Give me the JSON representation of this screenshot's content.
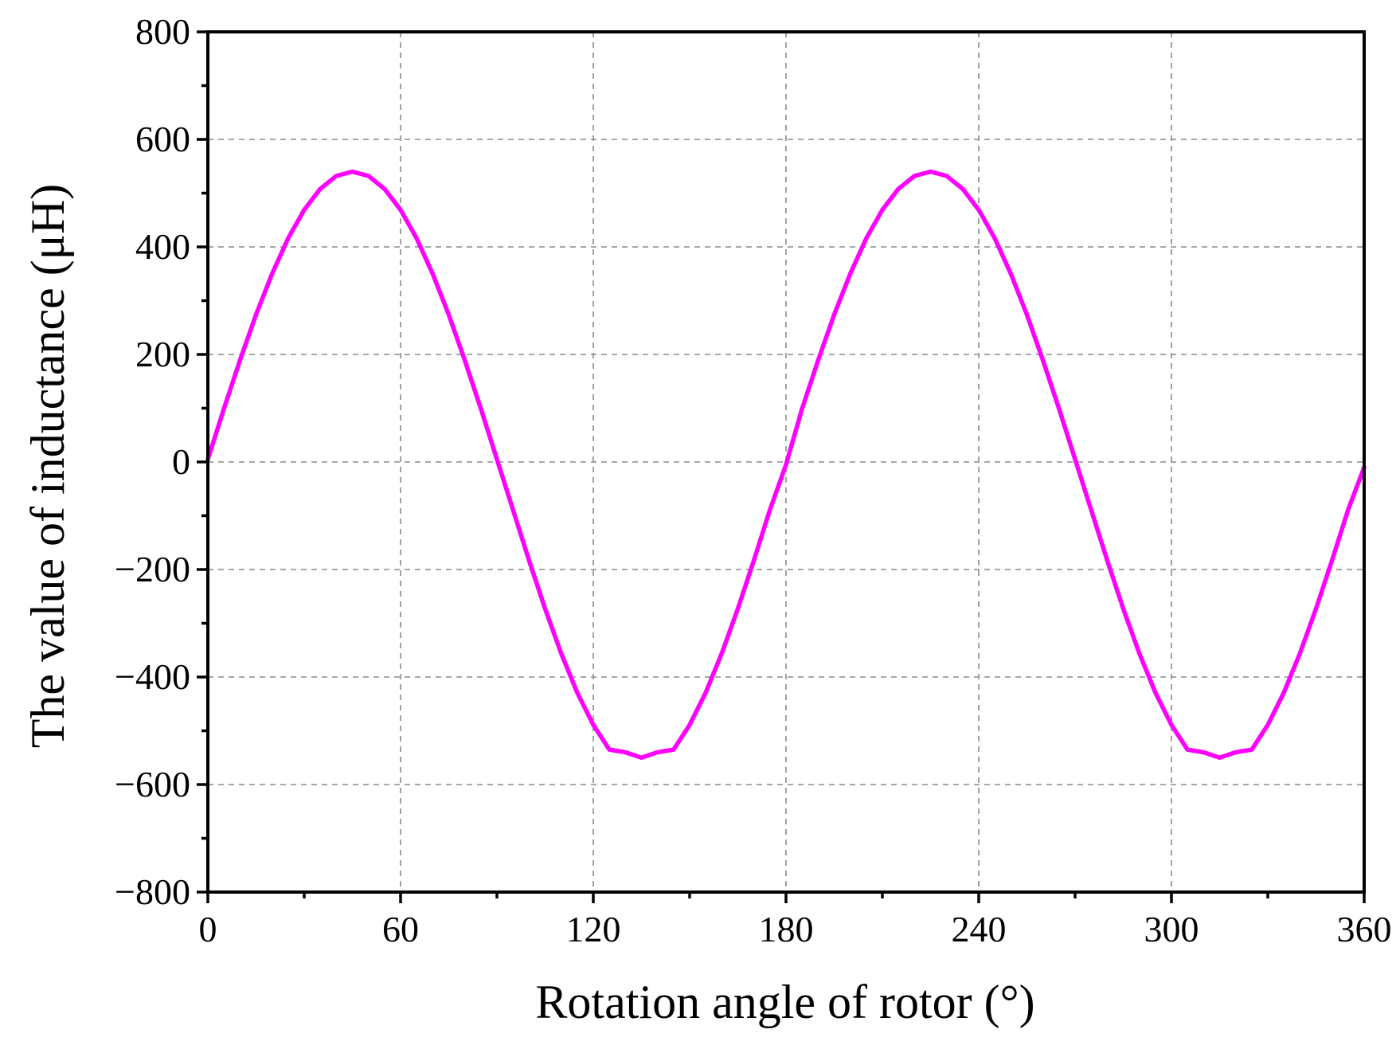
{
  "chart_data": {
    "type": "line",
    "title": "",
    "xlabel": "Rotation angle of rotor (°)",
    "ylabel": "The value of inductance (μH)",
    "xlim": [
      0,
      360
    ],
    "ylim": [
      -800,
      800
    ],
    "x_ticks": [
      0,
      60,
      120,
      180,
      240,
      300,
      360
    ],
    "x_tick_labels": [
      "0",
      "60",
      "120",
      "180",
      "240",
      "300",
      "360"
    ],
    "y_ticks": [
      800,
      600,
      400,
      200,
      0,
      -200,
      -400,
      -600,
      -800
    ],
    "y_tick_labels": [
      "800",
      "600",
      "400",
      "200",
      "0",
      "−200",
      "−400",
      "−600",
      "−800"
    ],
    "grid": true,
    "series": [
      {
        "color": "#ff00ff",
        "x": [
          0,
          5,
          10,
          15,
          20,
          25,
          30,
          35,
          40,
          45,
          50,
          55,
          60,
          65,
          70,
          75,
          80,
          85,
          90,
          95,
          100,
          105,
          110,
          115,
          120,
          125,
          130,
          135,
          140,
          145,
          150,
          155,
          160,
          165,
          170,
          175,
          180,
          185,
          190,
          195,
          200,
          205,
          210,
          215,
          220,
          225,
          230,
          235,
          240,
          245,
          250,
          255,
          260,
          265,
          270,
          275,
          280,
          285,
          290,
          295,
          300,
          305,
          310,
          315,
          320,
          325,
          330,
          335,
          340,
          345,
          350,
          355,
          360
        ],
        "values": [
          5,
          99,
          189,
          274,
          350,
          416,
          469,
          508,
          532,
          540,
          532,
          508,
          469,
          416,
          350,
          274,
          189,
          99,
          5,
          -89,
          -183,
          -273,
          -356,
          -429,
          -489,
          -535,
          -540,
          -550,
          -540,
          -535,
          -489,
          -429,
          -356,
          -273,
          -183,
          -89,
          -5,
          99,
          189,
          274,
          350,
          416,
          469,
          508,
          532,
          540,
          532,
          508,
          469,
          416,
          350,
          274,
          189,
          99,
          5,
          -89,
          -183,
          -273,
          -356,
          -429,
          -489,
          -535,
          -540,
          -550,
          -540,
          -535,
          -489,
          -429,
          -356,
          -273,
          -183,
          -89,
          -10
        ]
      }
    ]
  }
}
